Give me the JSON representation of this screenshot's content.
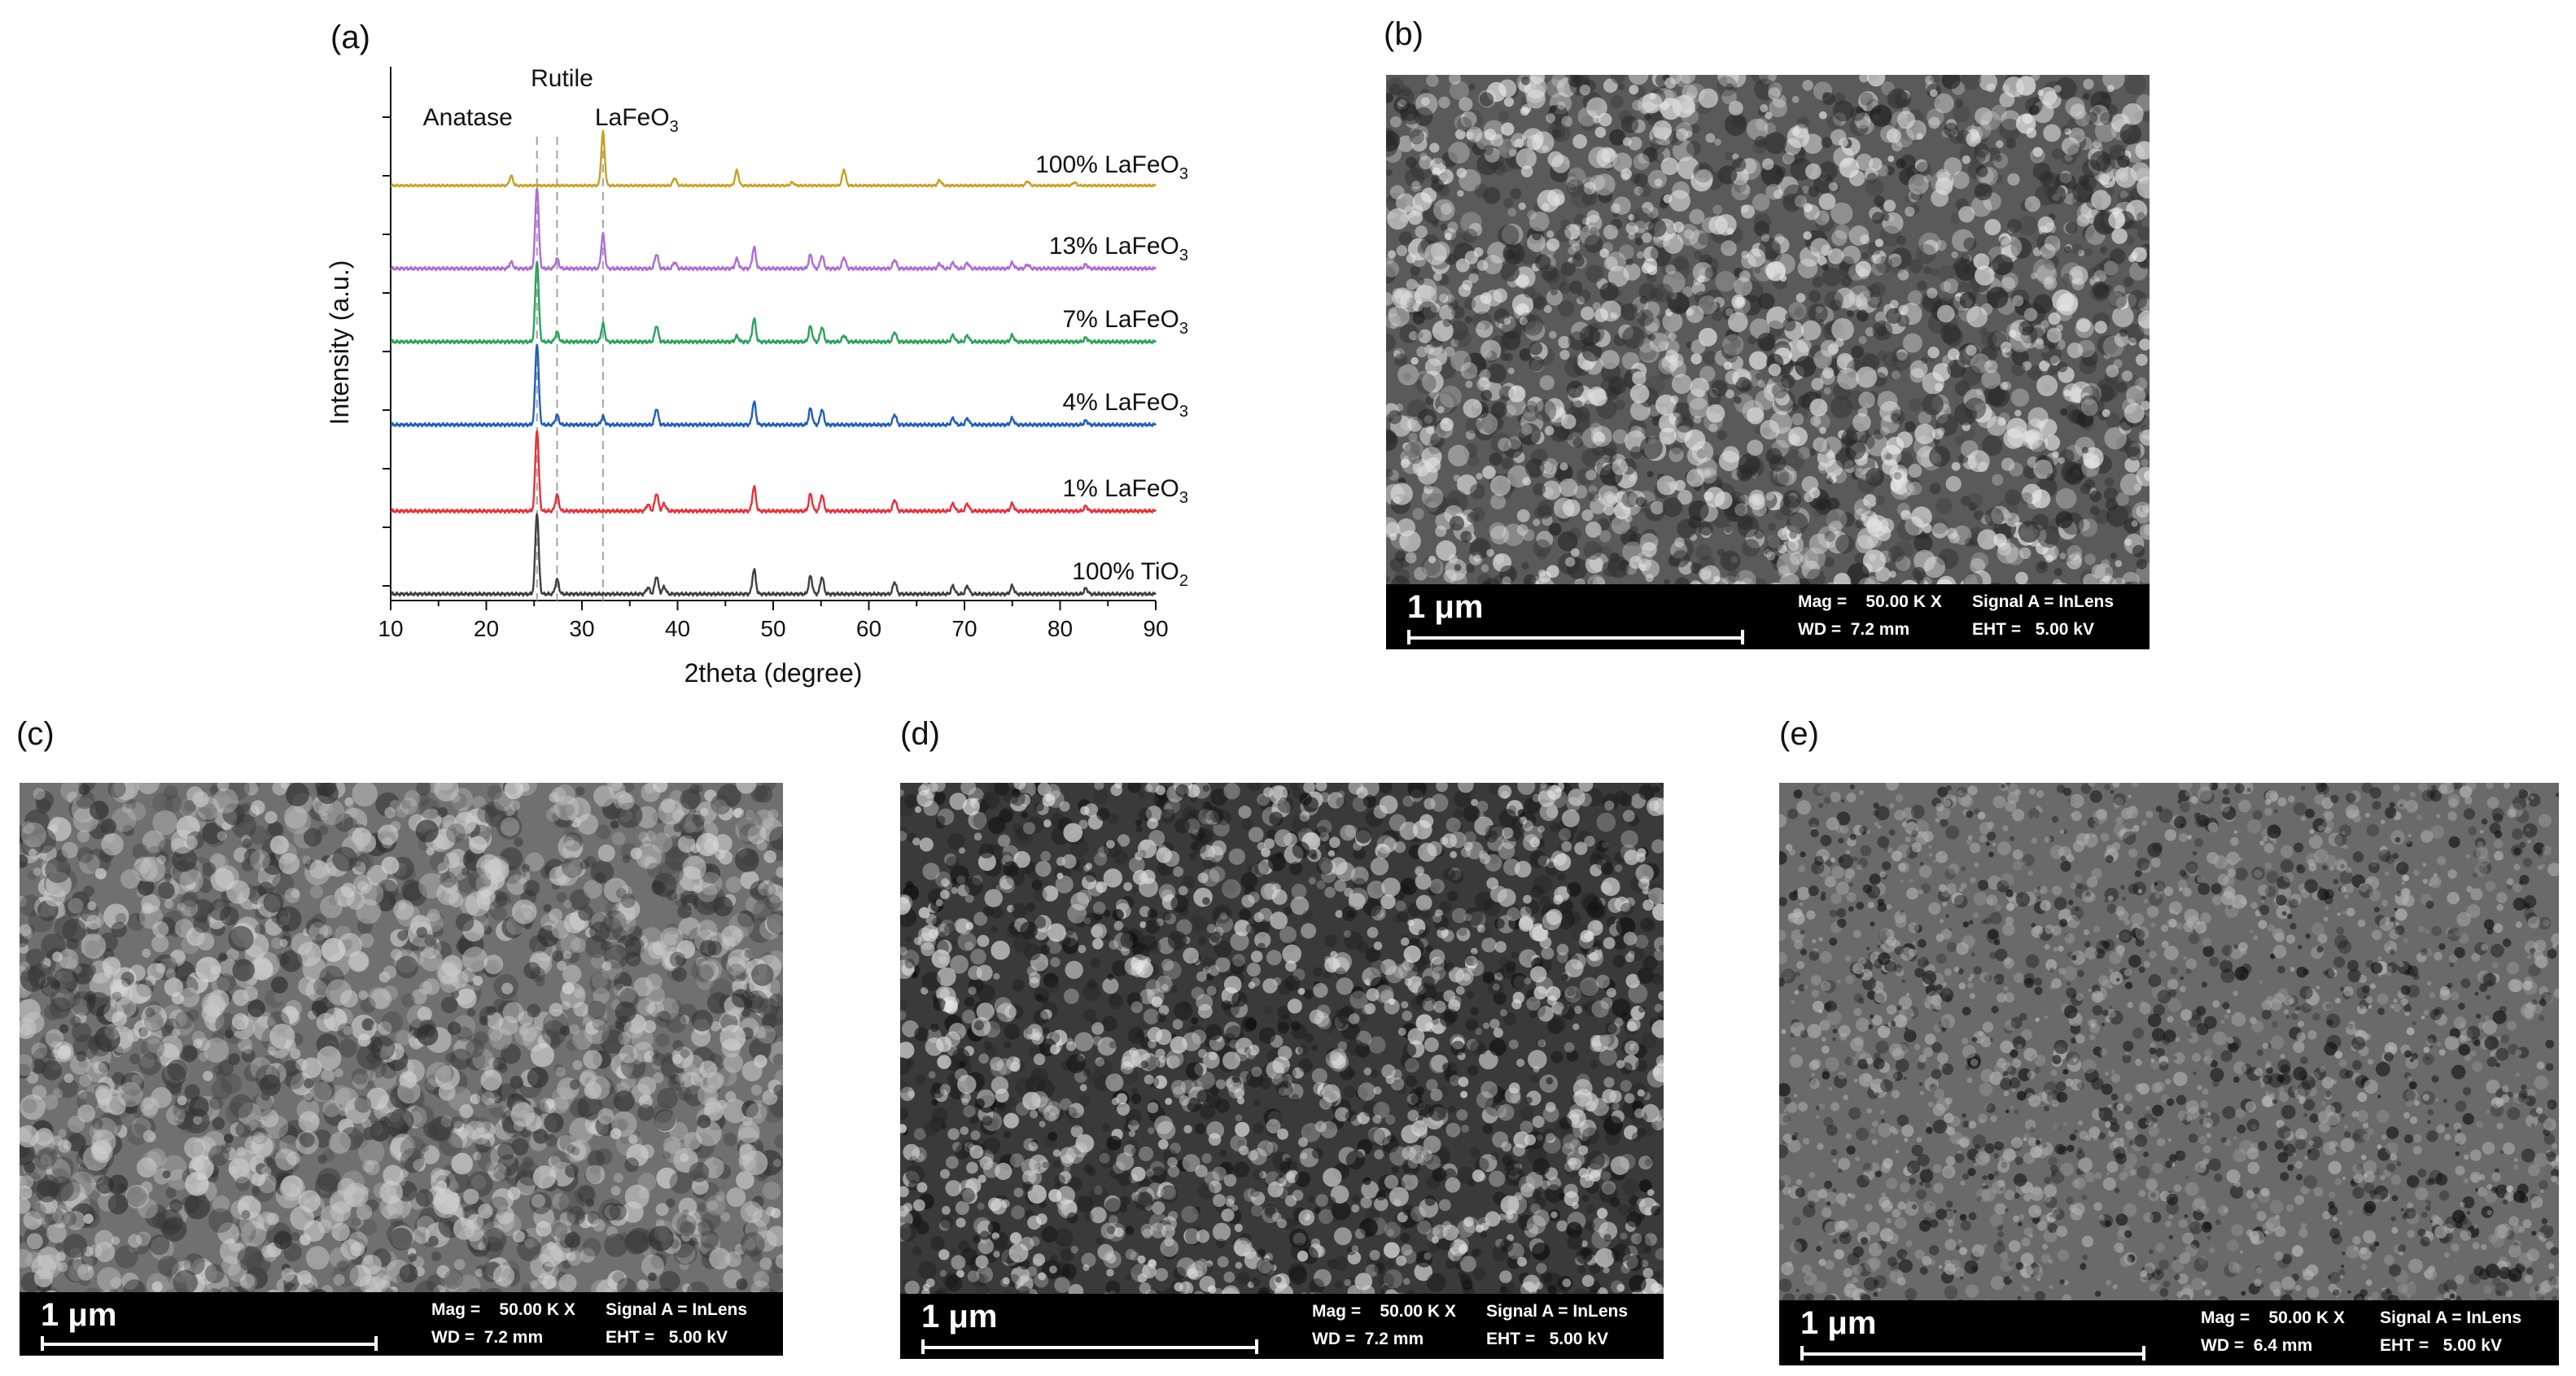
{
  "panels": {
    "a": "(a)",
    "b": "(b)",
    "c": "(c)",
    "d": "(d)",
    "e": "(e)"
  },
  "chart_data": {
    "type": "line",
    "xlabel": "2theta (degree)",
    "ylabel": "Intensity (a.u.)",
    "xlim": [
      10,
      90
    ],
    "xticks": [
      10,
      20,
      30,
      40,
      50,
      60,
      70,
      80,
      90
    ],
    "phase_lines": [
      {
        "label": "Anatase",
        "x": 25.3
      },
      {
        "label": "Rutile",
        "x": 27.4
      },
      {
        "label": "LaFeO",
        "sub": "3",
        "x": 32.2
      }
    ],
    "series": [
      {
        "name": "100% TiO",
        "sub": "2",
        "color": "#404040",
        "peaks": [
          [
            25.3,
            1.0
          ],
          [
            27.4,
            0.18
          ],
          [
            36.9,
            0.08
          ],
          [
            37.8,
            0.22
          ],
          [
            38.6,
            0.09
          ],
          [
            48.0,
            0.3
          ],
          [
            53.9,
            0.22
          ],
          [
            55.1,
            0.21
          ],
          [
            62.7,
            0.15
          ],
          [
            68.8,
            0.1
          ],
          [
            70.3,
            0.1
          ],
          [
            75.0,
            0.1
          ],
          [
            82.7,
            0.07
          ]
        ]
      },
      {
        "name": "1% LaFeO",
        "sub": "3",
        "color": "#e8303a",
        "peaks": [
          [
            25.3,
            1.0
          ],
          [
            27.4,
            0.2
          ],
          [
            36.9,
            0.08
          ],
          [
            37.8,
            0.22
          ],
          [
            38.6,
            0.09
          ],
          [
            48.0,
            0.3
          ],
          [
            53.9,
            0.21
          ],
          [
            55.1,
            0.2
          ],
          [
            62.7,
            0.14
          ],
          [
            68.8,
            0.09
          ],
          [
            70.3,
            0.09
          ],
          [
            75.0,
            0.09
          ],
          [
            82.7,
            0.06
          ]
        ]
      },
      {
        "name": "4% LaFeO",
        "sub": "3",
        "color": "#1f5fbf",
        "peaks": [
          [
            25.3,
            1.0
          ],
          [
            27.4,
            0.12
          ],
          [
            32.2,
            0.1
          ],
          [
            37.8,
            0.2
          ],
          [
            48.0,
            0.28
          ],
          [
            53.9,
            0.2
          ],
          [
            55.1,
            0.19
          ],
          [
            62.7,
            0.13
          ],
          [
            68.8,
            0.08
          ],
          [
            70.3,
            0.08
          ],
          [
            75.0,
            0.08
          ],
          [
            82.7,
            0.05
          ]
        ]
      },
      {
        "name": "7% LaFeO",
        "sub": "3",
        "color": "#2aa35a",
        "peaks": [
          [
            25.3,
            1.0
          ],
          [
            27.4,
            0.12
          ],
          [
            32.2,
            0.22
          ],
          [
            37.8,
            0.2
          ],
          [
            46.2,
            0.07
          ],
          [
            48.0,
            0.28
          ],
          [
            53.9,
            0.19
          ],
          [
            55.1,
            0.18
          ],
          [
            57.4,
            0.08
          ],
          [
            62.7,
            0.12
          ],
          [
            68.8,
            0.08
          ],
          [
            70.3,
            0.08
          ],
          [
            75.0,
            0.08
          ],
          [
            82.7,
            0.05
          ]
        ]
      },
      {
        "name": "13% LaFeO",
        "sub": "3",
        "color": "#b06ad8",
        "peaks": [
          [
            22.6,
            0.08
          ],
          [
            25.3,
            1.0
          ],
          [
            27.4,
            0.12
          ],
          [
            32.2,
            0.42
          ],
          [
            37.8,
            0.18
          ],
          [
            39.7,
            0.08
          ],
          [
            46.2,
            0.12
          ],
          [
            48.0,
            0.26
          ],
          [
            53.9,
            0.17
          ],
          [
            55.1,
            0.16
          ],
          [
            57.4,
            0.14
          ],
          [
            62.7,
            0.11
          ],
          [
            67.4,
            0.06
          ],
          [
            68.8,
            0.07
          ],
          [
            70.3,
            0.07
          ],
          [
            75.0,
            0.07
          ],
          [
            76.6,
            0.05
          ],
          [
            82.7,
            0.05
          ]
        ]
      },
      {
        "name": "100% LaFeO",
        "sub": "3",
        "color": "#c9a020",
        "peaks": [
          [
            22.6,
            0.18
          ],
          [
            32.2,
            1.0
          ],
          [
            39.7,
            0.14
          ],
          [
            46.2,
            0.28
          ],
          [
            52.0,
            0.06
          ],
          [
            57.4,
            0.3
          ],
          [
            67.4,
            0.1
          ],
          [
            76.6,
            0.08
          ],
          [
            81.5,
            0.06
          ]
        ]
      }
    ]
  },
  "sem": {
    "b": {
      "scale": "1 μm",
      "mag": "Mag =    50.00 K X",
      "signal": "Signal A = InLens",
      "wd": "WD =  7.2 mm",
      "eht": "EHT =   5.00 kV"
    },
    "c": {
      "scale": "1 μm",
      "mag": "Mag =    50.00 K X",
      "signal": "Signal A = InLens",
      "wd": "WD =  7.2 mm",
      "eht": "EHT =   5.00 kV"
    },
    "d": {
      "scale": "1 μm",
      "mag": "Mag =    50.00 K X",
      "signal": "Signal A = InLens",
      "wd": "WD =  7.2 mm",
      "eht": "EHT =   5.00 kV"
    },
    "e": {
      "scale": "1 μm",
      "mag": "Mag =    50.00 K X",
      "signal": "Signal A = InLens",
      "wd": "WD =  6.4 mm",
      "eht": "EHT =   5.00 kV"
    }
  }
}
